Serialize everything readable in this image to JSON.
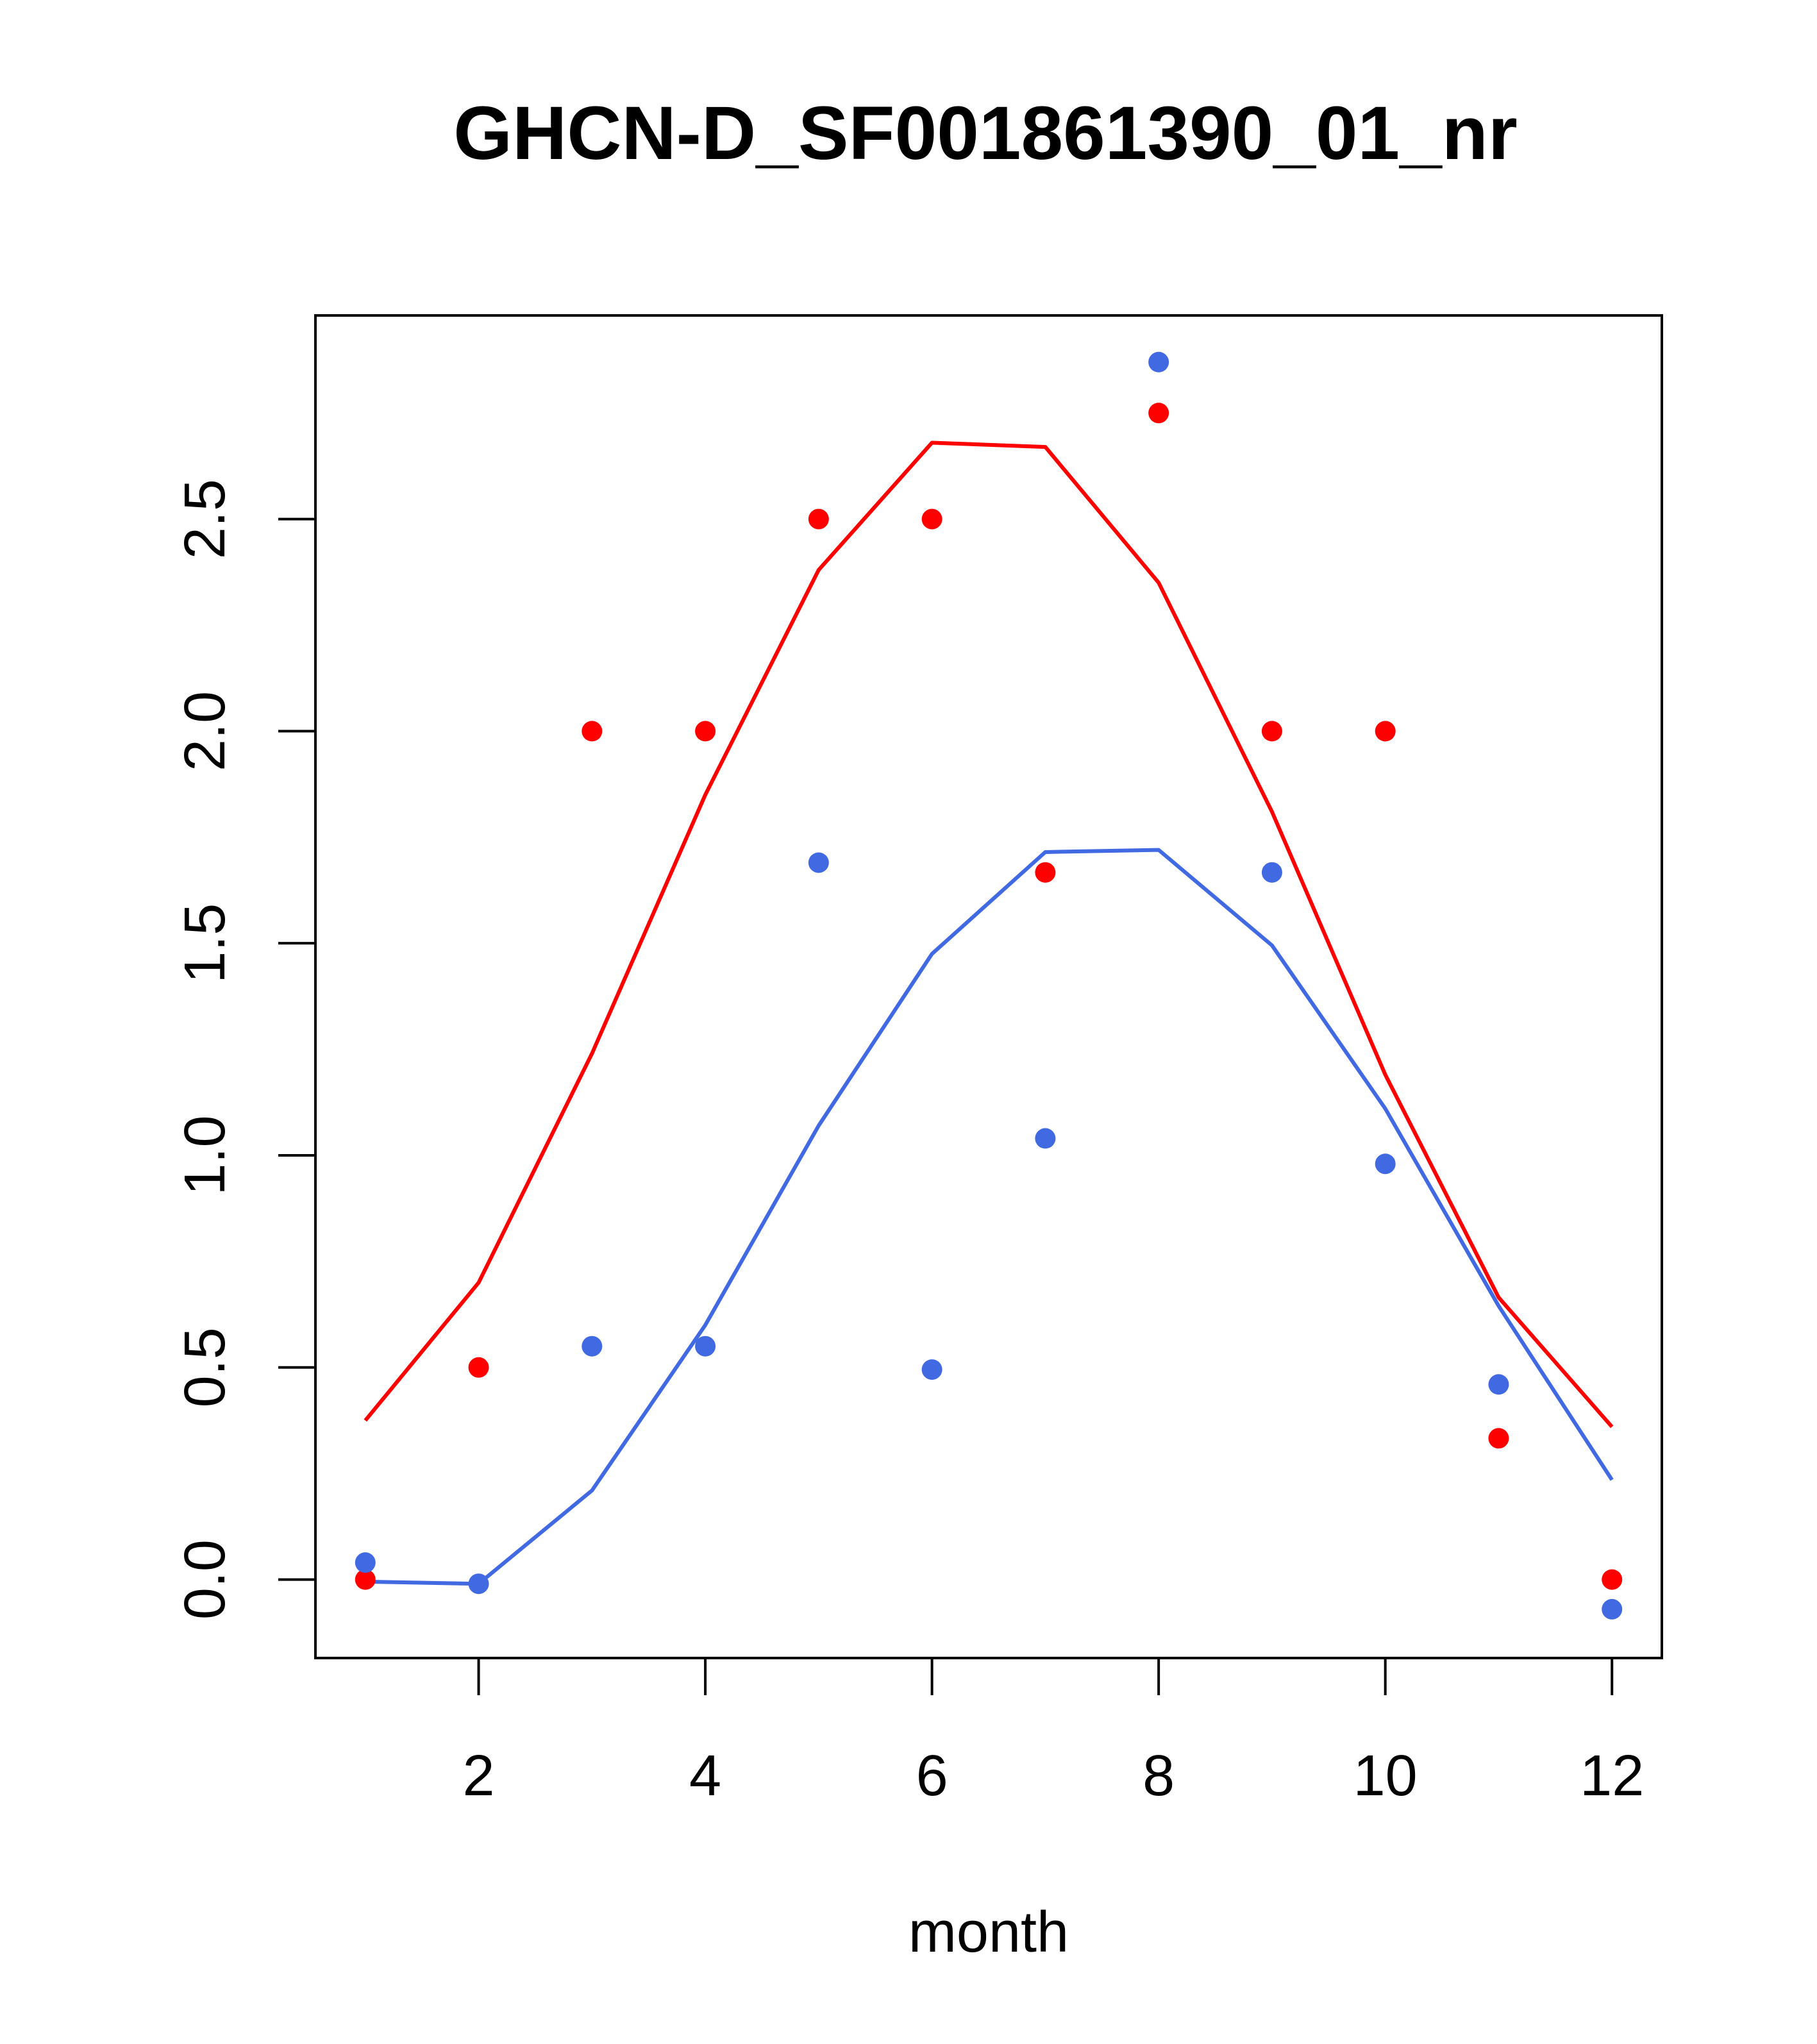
{
  "chart_data": {
    "type": "scatter",
    "title": "GHCN-D_SF001861390_01_nr",
    "xlabel": "month",
    "ylabel": "",
    "xlim": [
      0.56,
      12.44
    ],
    "ylim": [
      -0.185,
      2.98
    ],
    "x_ticks": [
      2,
      4,
      6,
      8,
      10,
      12
    ],
    "x_tick_labels": [
      "2",
      "4",
      "6",
      "8",
      "10",
      "12"
    ],
    "y_ticks": [
      0.0,
      0.5,
      1.0,
      1.5,
      2.0,
      2.5
    ],
    "y_tick_labels": [
      "0.0",
      "0.5",
      "1.0",
      "1.5",
      "2.0",
      "2.5"
    ],
    "grid": false,
    "x": [
      1,
      2,
      3,
      4,
      5,
      6,
      7,
      8,
      9,
      10,
      11,
      12
    ],
    "series": [
      {
        "name": "red points",
        "kind": "points",
        "color": "#ff0000",
        "values": [
          0.0,
          0.5,
          2.0,
          2.0,
          2.5,
          2.5,
          1.667,
          2.75,
          2.0,
          2.0,
          0.333,
          0.0
        ]
      },
      {
        "name": "blue points",
        "kind": "points",
        "color": "#4169e1",
        "values": [
          0.04,
          -0.01,
          0.55,
          0.55,
          1.69,
          0.495,
          1.04,
          2.87,
          1.667,
          0.98,
          0.46,
          -0.07
        ]
      },
      {
        "name": "red curve",
        "kind": "line",
        "color": "#ff0000",
        "values": [
          0.375,
          0.7,
          1.24,
          1.85,
          2.38,
          2.68,
          2.67,
          2.35,
          1.81,
          1.19,
          0.665,
          0.36
        ]
      },
      {
        "name": "blue curve",
        "kind": "line",
        "color": "#4169e1",
        "values": [
          -0.005,
          -0.01,
          0.21,
          0.6,
          1.07,
          1.475,
          1.715,
          1.72,
          1.495,
          1.11,
          0.645,
          0.235
        ]
      }
    ]
  }
}
